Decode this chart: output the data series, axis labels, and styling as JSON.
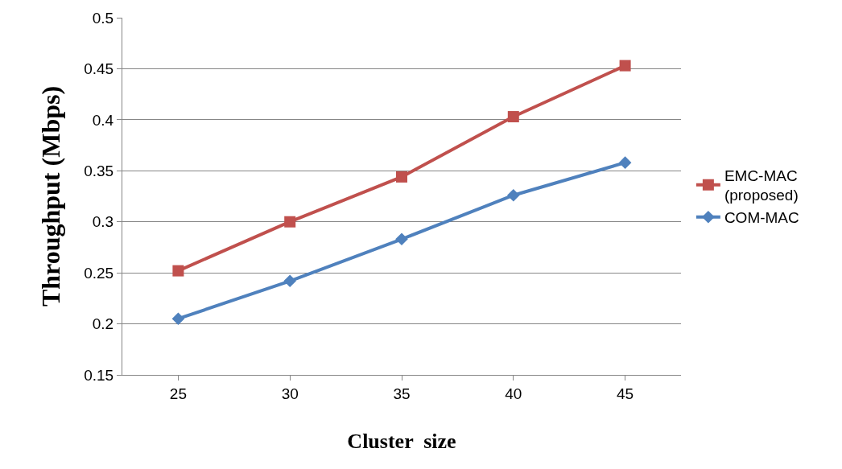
{
  "chart_data": {
    "type": "line",
    "xlabel": "Cluster  size",
    "ylabel": "Throughput (Mbps)",
    "categories": [
      "25",
      "30",
      "35",
      "40",
      "45"
    ],
    "series": [
      {
        "name": "EMC-MAC (proposed)",
        "color": "#c0504d",
        "values": [
          0.252,
          0.3,
          0.344,
          0.403,
          0.453
        ],
        "marker": "square"
      },
      {
        "name": "COM-MAC",
        "color": "#4f81bd",
        "values": [
          0.205,
          0.242,
          0.283,
          0.326,
          0.358
        ],
        "marker": "diamond"
      }
    ],
    "ylim": [
      0.15,
      0.5
    ],
    "yticks": [
      0.15,
      0.2,
      0.25,
      0.3,
      0.35,
      0.4,
      0.45,
      0.5
    ],
    "grid": "y",
    "legend": "right",
    "line_style": "solid"
  }
}
